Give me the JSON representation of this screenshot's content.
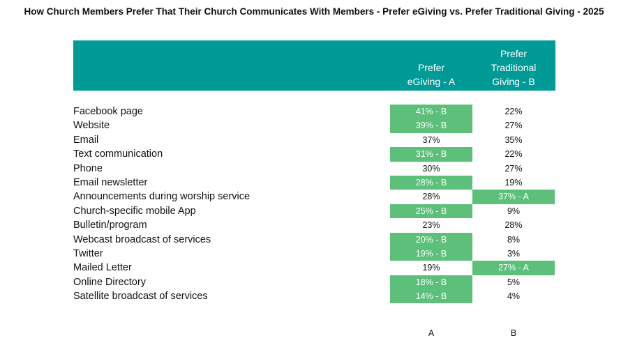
{
  "chart_data": {
    "type": "table",
    "title": "How Church Members Prefer That Their Church Communicates With Members - Prefer eGiving vs. Prefer Traditional Giving - 2025",
    "columns": [
      {
        "key": "a",
        "lines": [
          "Prefer",
          "eGiving - A"
        ],
        "letter": "A"
      },
      {
        "key": "b",
        "lines": [
          "Prefer",
          "Traditional",
          "Giving - B"
        ],
        "letter": "B"
      }
    ],
    "rows": [
      {
        "label": "Facebook page",
        "a": {
          "text": "41% - B",
          "value": 41,
          "highlight": true
        },
        "b": {
          "text": "22%",
          "value": 22,
          "highlight": false
        }
      },
      {
        "label": "Website",
        "a": {
          "text": "39% - B",
          "value": 39,
          "highlight": true
        },
        "b": {
          "text": "27%",
          "value": 27,
          "highlight": false
        }
      },
      {
        "label": "Email",
        "a": {
          "text": "37%",
          "value": 37,
          "highlight": false
        },
        "b": {
          "text": "35%",
          "value": 35,
          "highlight": false
        }
      },
      {
        "label": "Text communication",
        "a": {
          "text": "31% - B",
          "value": 31,
          "highlight": true
        },
        "b": {
          "text": "22%",
          "value": 22,
          "highlight": false
        }
      },
      {
        "label": "Phone",
        "a": {
          "text": "30%",
          "value": 30,
          "highlight": false
        },
        "b": {
          "text": "27%",
          "value": 27,
          "highlight": false
        }
      },
      {
        "label": "Email newsletter",
        "a": {
          "text": "28% -  B",
          "value": 28,
          "highlight": true
        },
        "b": {
          "text": "19%",
          "value": 19,
          "highlight": false
        }
      },
      {
        "label": "Announcements during worship service",
        "a": {
          "text": "28%",
          "value": 28,
          "highlight": false
        },
        "b": {
          "text": "37% - A",
          "value": 37,
          "highlight": true
        }
      },
      {
        "label": "Church-specific mobile App",
        "a": {
          "text": "25% - B",
          "value": 25,
          "highlight": true
        },
        "b": {
          "text": "9%",
          "value": 9,
          "highlight": false
        }
      },
      {
        "label": "Bulletin/program",
        "a": {
          "text": "23%",
          "value": 23,
          "highlight": false
        },
        "b": {
          "text": "28%",
          "value": 28,
          "highlight": false
        }
      },
      {
        "label": "Webcast broadcast of services",
        "a": {
          "text": "20% - B",
          "value": 20,
          "highlight": true
        },
        "b": {
          "text": "8%",
          "value": 8,
          "highlight": false
        }
      },
      {
        "label": "Twitter",
        "a": {
          "text": "19% - B",
          "value": 19,
          "highlight": true
        },
        "b": {
          "text": "3%",
          "value": 3,
          "highlight": false
        }
      },
      {
        "label": "Mailed Letter",
        "a": {
          "text": "19%",
          "value": 19,
          "highlight": false
        },
        "b": {
          "text": "27% - A",
          "value": 27,
          "highlight": true
        }
      },
      {
        "label": "Online Directory",
        "a": {
          "text": "18% - B",
          "value": 18,
          "highlight": true
        },
        "b": {
          "text": "5%",
          "value": 5,
          "highlight": false
        }
      },
      {
        "label": "Satellite broadcast of services",
        "a": {
          "text": "14% - B",
          "value": 14,
          "highlight": true
        },
        "b": {
          "text": "4%",
          "value": 4,
          "highlight": false
        }
      }
    ]
  },
  "colors": {
    "header_band": "#009a97",
    "highlight_cell": "#5cbf7a",
    "header_text": "#ffffff"
  }
}
